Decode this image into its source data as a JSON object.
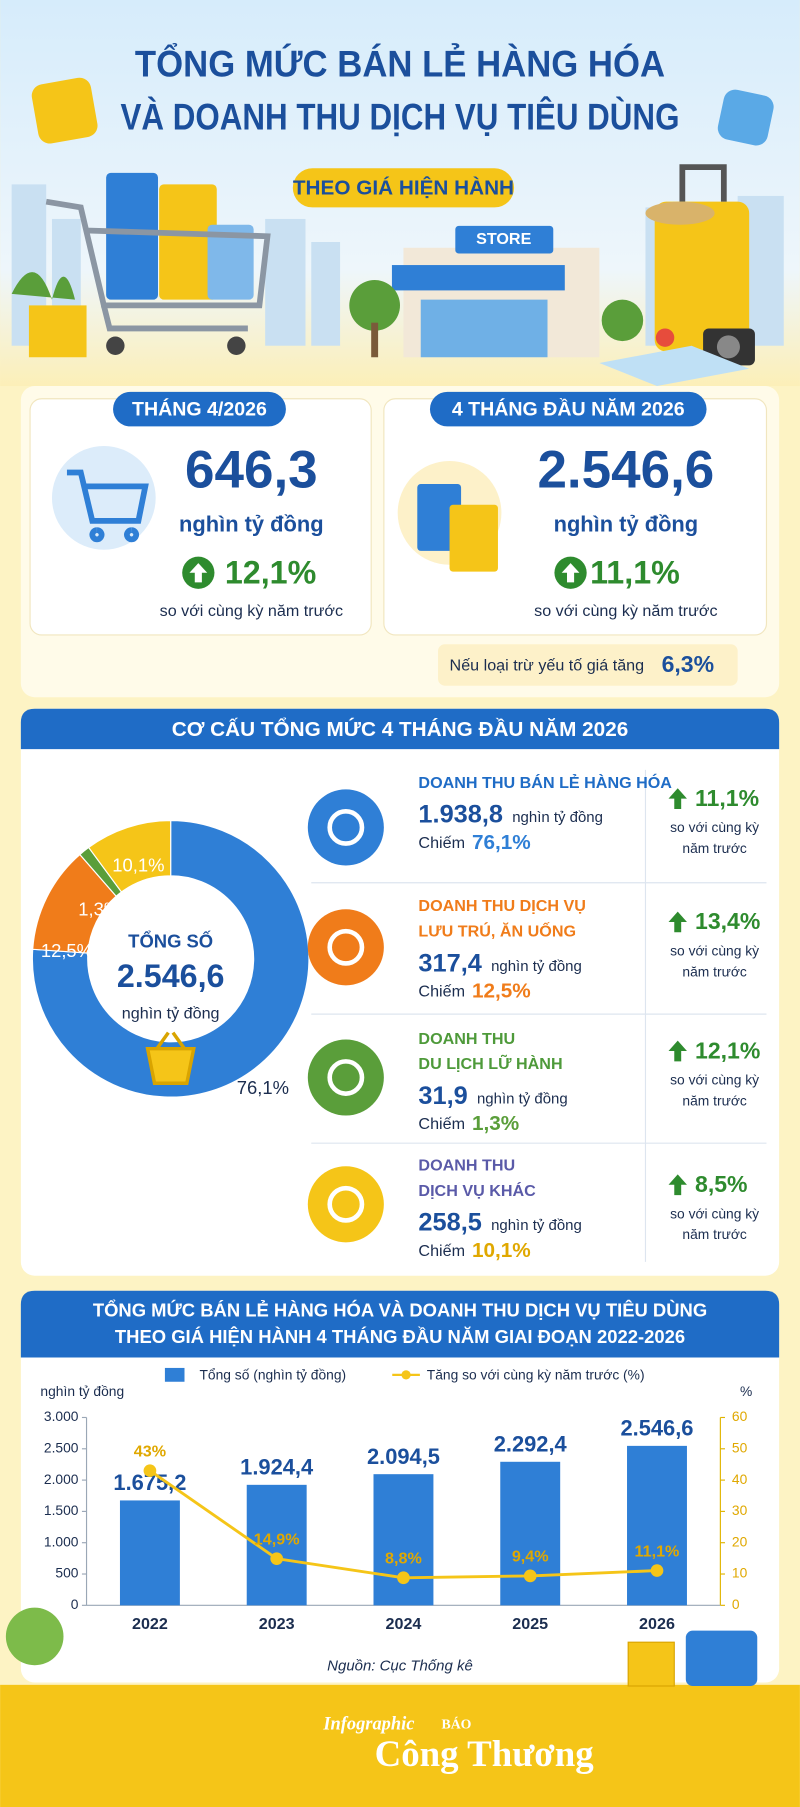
{
  "header": {
    "title_line1": "TỔNG MỨC BÁN LẺ HÀNG HÓA",
    "title_line2": "VÀ DOANH THU DỊCH VỤ TIÊU DÙNG",
    "subtitle": "THEO GIÁ HIỆN HÀNH",
    "store_sign": "STORE"
  },
  "summary": [
    {
      "label": "THÁNG 4/2026",
      "value": "646,3",
      "unit": "nghìn tỷ đồng",
      "growth": "12,1%",
      "compare": "so với cùng kỳ năm trước"
    },
    {
      "label": "4 THÁNG ĐẦU NĂM 2026",
      "value": "2.546,6",
      "unit": "nghìn tỷ đồng",
      "growth": "11,1%",
      "compare": "so với cùng kỳ năm trước"
    }
  ],
  "note": {
    "text": "Nếu loại trừ yếu tố giá tăng",
    "value": "6,3%"
  },
  "structure": {
    "title": "CƠ CẤU TỔNG MỨC 4 THÁNG ĐẦU NĂM 2026",
    "items": [
      {
        "name": [
          "DOANH THU BÁN LẺ HÀNG HÓA"
        ],
        "value": "1.938,8",
        "unit": "nghìn tỷ đồng",
        "share_label": "Chiếm",
        "share": "76,1%",
        "growth": "11,1%",
        "compare": [
          "so với cùng kỳ",
          "năm trước"
        ]
      },
      {
        "name": [
          "DOANH THU DỊCH VỤ",
          "LƯU TRÚ, ĂN UỐNG"
        ],
        "value": "317,4",
        "unit": "nghìn tỷ đồng",
        "share_label": "Chiếm",
        "share": "12,5%",
        "growth": "13,4%",
        "compare": [
          "so với cùng kỳ",
          "năm trước"
        ]
      },
      {
        "name": [
          "DOANH THU",
          "DU LỊCH LỮ HÀNH"
        ],
        "value": "31,9",
        "unit": "nghìn tỷ đồng",
        "share_label": "Chiếm",
        "share": "1,3%",
        "growth": "12,1%",
        "compare": [
          "so với cùng kỳ",
          "năm trước"
        ]
      },
      {
        "name": [
          "DOANH THU",
          "DỊCH VỤ KHÁC"
        ],
        "value": "258,5",
        "unit": "nghìn tỷ đồng",
        "share_label": "Chiếm",
        "share": "10,1%",
        "growth": "8,5%",
        "compare": [
          "so với cùng kỳ",
          "năm trước"
        ]
      }
    ]
  },
  "chart_data": [
    {
      "type": "pie",
      "donut": true,
      "center_title": "TỔNG SỐ",
      "center_value": "2.546,6",
      "center_unit": "nghìn tỷ đồng",
      "values": [
        76.1,
        12.5,
        1.3,
        10.1
      ],
      "value_labels": [
        "76,1%",
        "12,5%",
        "1,3%",
        "10,1%"
      ],
      "colors": [
        "#2f7fd6",
        "#f07c1a",
        "#5a9e3a",
        "#f5c518"
      ]
    },
    {
      "type": "bar",
      "title": [
        "TỔNG MỨC BÁN LẺ HÀNG HÓA VÀ DOANH THU DỊCH VỤ TIÊU DÙNG",
        "THEO GIÁ HIỆN HÀNH 4 THÁNG ĐẦU NĂM GIAI ĐOẠN 2022-2026"
      ],
      "ylabel": "nghìn tỷ đồng",
      "y2label": "%",
      "categories": [
        "2022",
        "2023",
        "2024",
        "2025",
        "2026"
      ],
      "series": [
        {
          "name": "Tổng số (nghìn tỷ đồng)",
          "color": "#2f7fd6",
          "values": [
            1675.2,
            1924.4,
            2094.5,
            2292.4,
            2546.6
          ],
          "value_labels": [
            "1.675,2",
            "1.924,4",
            "2.094,5",
            "2.292,4",
            "2.546,6"
          ]
        },
        {
          "name": "Tăng so với cùng kỳ năm trước (%)",
          "type": "line",
          "axis": "y2",
          "color": "#f5c518",
          "values": [
            43,
            14.9,
            8.8,
            9.4,
            11.1
          ],
          "value_labels": [
            "43%",
            "14,9%",
            "8,8%",
            "9,4%",
            "11,1%"
          ]
        }
      ],
      "ylim": [
        0,
        3000
      ],
      "yticks": [
        0,
        500,
        {
          "value": 1000,
          "label": "1.000"
        },
        {
          "value": 1500,
          "label": "1.500"
        },
        {
          "value": 2000,
          "label": "2.000"
        },
        {
          "value": 2500,
          "label": "2.500"
        },
        {
          "value": 3000,
          "label": "3.000"
        }
      ],
      "y2lim": [
        0,
        60
      ],
      "y2ticks": [
        0,
        10,
        20,
        30,
        40,
        50,
        60
      ],
      "legend": "top"
    }
  ],
  "source": "Nguồn: Cục Thống kê",
  "footer": {
    "kicker": "Infographic",
    "brand_small": "BÁO",
    "brand": "Công Thương"
  }
}
